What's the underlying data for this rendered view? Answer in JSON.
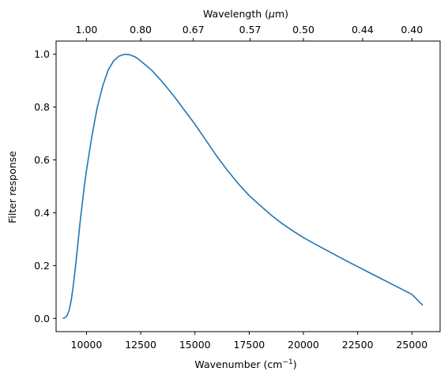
{
  "chart_data": {
    "type": "line",
    "xlabel": "Wavenumber (cm",
    "xlabel_sup": "−1",
    "xlabel_end": ")",
    "ylabel": "Filter response",
    "top_label": "Wavelength (",
    "top_label_mu": "μ",
    "top_label_end": "m)",
    "xlim": [
      8600,
      26300
    ],
    "ylim": [
      -0.05,
      1.05
    ],
    "xticks": [
      10000,
      12500,
      15000,
      17500,
      20000,
      22500,
      25000
    ],
    "xtick_labels": [
      "10000",
      "12500",
      "15000",
      "17500",
      "20000",
      "22500",
      "25000"
    ],
    "yticks": [
      0.0,
      0.2,
      0.4,
      0.6,
      0.8,
      1.0
    ],
    "ytick_labels": [
      "0.0",
      "0.2",
      "0.4",
      "0.6",
      "0.8",
      "1.0"
    ],
    "top_ticks_um": [
      1.0,
      0.8,
      0.67,
      0.57,
      0.5,
      0.44,
      0.4
    ],
    "top_tick_labels": [
      "1.00",
      "0.80",
      "0.67",
      "0.57",
      "0.50",
      "0.44",
      "0.40"
    ],
    "grid": false,
    "series": [
      {
        "color": "#1f77b4",
        "x": [
          8900,
          9000,
          9100,
          9200,
          9300,
          9400,
          9500,
          9600,
          9700,
          9800,
          9900,
          10000,
          10250,
          10500,
          10750,
          11000,
          11250,
          11500,
          11750,
          12000,
          12250,
          12500,
          13000,
          13500,
          14000,
          14500,
          15000,
          15500,
          16000,
          16500,
          17000,
          17500,
          18000,
          18500,
          19000,
          19500,
          20000,
          20500,
          21000,
          21500,
          22000,
          22500,
          23000,
          23500,
          24000,
          24500,
          25000,
          25500
        ],
        "y": [
          0.0,
          0.002,
          0.01,
          0.03,
          0.07,
          0.13,
          0.2,
          0.28,
          0.36,
          0.43,
          0.5,
          0.56,
          0.69,
          0.8,
          0.88,
          0.94,
          0.975,
          0.993,
          1.0,
          0.998,
          0.99,
          0.975,
          0.94,
          0.895,
          0.845,
          0.79,
          0.735,
          0.675,
          0.615,
          0.56,
          0.51,
          0.465,
          0.428,
          0.392,
          0.36,
          0.332,
          0.306,
          0.283,
          0.261,
          0.239,
          0.217,
          0.196,
          0.175,
          0.154,
          0.133,
          0.112,
          0.091,
          0.05
        ]
      }
    ]
  }
}
